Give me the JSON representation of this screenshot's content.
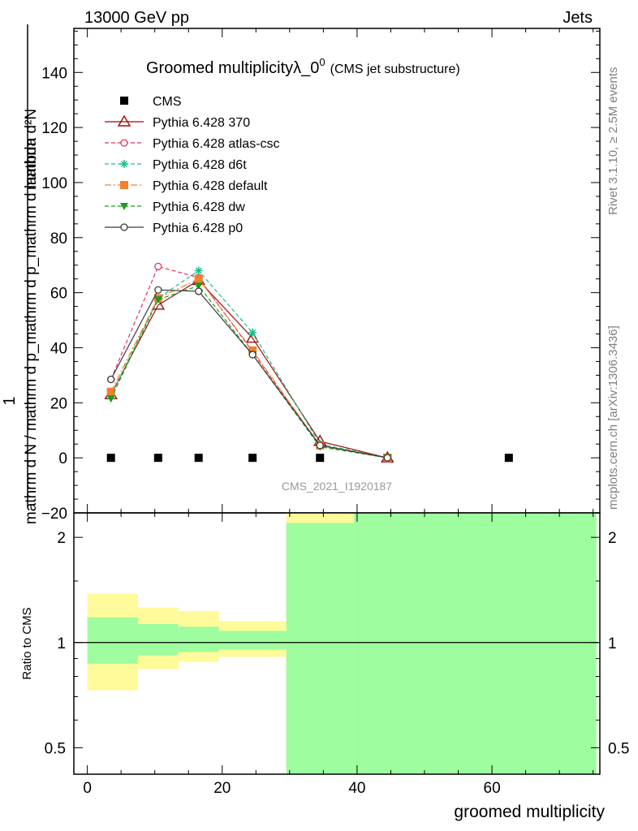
{
  "header": {
    "left": "13000 GeV pp",
    "right": "Jets"
  },
  "side_labels": {
    "rivet": "Rivet 3.1.10, ≥ 2.5M events",
    "mcplots": "mcplots.cern.ch [arXiv:1306.3436]"
  },
  "chart_data": [
    {
      "type": "line",
      "title": "Groomed multiplicityλ_0",
      "title_sup": "0",
      "subtitle": "(CMS jet substructure)",
      "watermark": "CMS_2021_I1920187",
      "ylabel_numerator": "1",
      "ylabel_denominator": "mathrm d N / mathrm d p_mathrm d p_mathrm d lambda",
      "ylabel_top": "mathrm d²N",
      "xlim": [
        -2,
        76
      ],
      "ylim": [
        -20,
        156
      ],
      "yticks": [
        -20,
        0,
        20,
        40,
        60,
        80,
        100,
        120,
        140
      ],
      "ytick_labels": [
        "−20",
        "0",
        "20",
        "40",
        "60",
        "80",
        "100",
        "120",
        "140"
      ],
      "grid": false,
      "legend_placement": "top-left",
      "series": [
        {
          "name": "CMS",
          "color": "#000000",
          "style": "data",
          "marker": "square",
          "x": [
            3.5,
            10.5,
            16.5,
            24.5,
            34.5,
            44.5,
            62.5
          ],
          "y": [
            0,
            0,
            0,
            0,
            0,
            0,
            0
          ]
        },
        {
          "name": "Pythia 6.428 370",
          "color": "#9e0a0a",
          "style": "solid",
          "marker": "triangle-open",
          "x": [
            3.5,
            10.5,
            16.5,
            24.5,
            34.5,
            44.5
          ],
          "y": [
            23,
            55.5,
            64.5,
            43.5,
            6,
            0
          ]
        },
        {
          "name": "Pythia 6.428 atlas-csc",
          "color": "#e8325a",
          "style": "dashed",
          "marker": "circle-open",
          "x": [
            3.5,
            10.5,
            16.5,
            24.5,
            34.5,
            44.5
          ],
          "y": [
            28.5,
            69.5,
            65.5,
            38.5,
            4.5,
            0
          ]
        },
        {
          "name": "Pythia 6.428 d6t",
          "color": "#1abf8a",
          "style": "dashed",
          "marker": "star",
          "x": [
            3.5,
            10.5,
            16.5,
            24.5,
            34.5,
            44.5
          ],
          "y": [
            22.5,
            58,
            68,
            45.5,
            5,
            0
          ]
        },
        {
          "name": "Pythia 6.428 default",
          "color": "#f57f2c",
          "style": "dashdot",
          "marker": "square",
          "x": [
            3.5,
            10.5,
            16.5,
            24.5,
            34.5,
            44.5
          ],
          "y": [
            24,
            58,
            65,
            39,
            4.5,
            0
          ]
        },
        {
          "name": "Pythia 6.428 dw",
          "color": "#1c9c1c",
          "style": "dashed",
          "marker": "triangle-down",
          "x": [
            3.5,
            10.5,
            16.5,
            24.5,
            34.5,
            44.5
          ],
          "y": [
            21.5,
            57.5,
            62.5,
            37.5,
            4,
            0
          ]
        },
        {
          "name": "Pythia 6.428 p0",
          "color": "#3a3a3a",
          "style": "solid",
          "marker": "circle-open",
          "x": [
            3.5,
            10.5,
            16.5,
            24.5,
            34.5,
            44.5
          ],
          "y": [
            28.5,
            61,
            60.5,
            37.5,
            4.5,
            0
          ]
        }
      ]
    },
    {
      "type": "area",
      "ylabel": "Ratio to CMS",
      "xlabel": "groomed multiplicity",
      "xlim": [
        -2,
        76
      ],
      "ylim": [
        0.42,
        2.35
      ],
      "ylog": true,
      "xticks": [
        0,
        20,
        40,
        60
      ],
      "yticks": [
        0.5,
        1,
        2
      ],
      "ytick_labels": [
        "0.5",
        "1",
        "2"
      ],
      "reference_line": 1,
      "bands": {
        "green_color": "#9efd9e",
        "yellow_color": "#fffa9a",
        "bins": [
          {
            "lo": 0,
            "hi": 7.5,
            "green": [
              0.87,
              1.18
            ],
            "yellow": [
              0.73,
              1.38
            ]
          },
          {
            "lo": 7.5,
            "hi": 13.5,
            "green": [
              0.92,
              1.13
            ],
            "yellow": [
              0.84,
              1.26
            ]
          },
          {
            "lo": 13.5,
            "hi": 19.5,
            "green": [
              0.94,
              1.11
            ],
            "yellow": [
              0.88,
              1.23
            ]
          },
          {
            "lo": 19.5,
            "hi": 29.5,
            "green": [
              0.955,
              1.08
            ],
            "yellow": [
              0.91,
              1.15
            ]
          },
          {
            "lo": 29.5,
            "hi": 39.5,
            "green": [
              0.42,
              2.2
            ],
            "yellow": [
              0.42,
              2.35
            ]
          },
          {
            "lo": 39.5,
            "hi": 75.5,
            "green": [
              0.42,
              2.35
            ],
            "yellow": [
              0.42,
              2.35
            ]
          }
        ]
      }
    }
  ]
}
